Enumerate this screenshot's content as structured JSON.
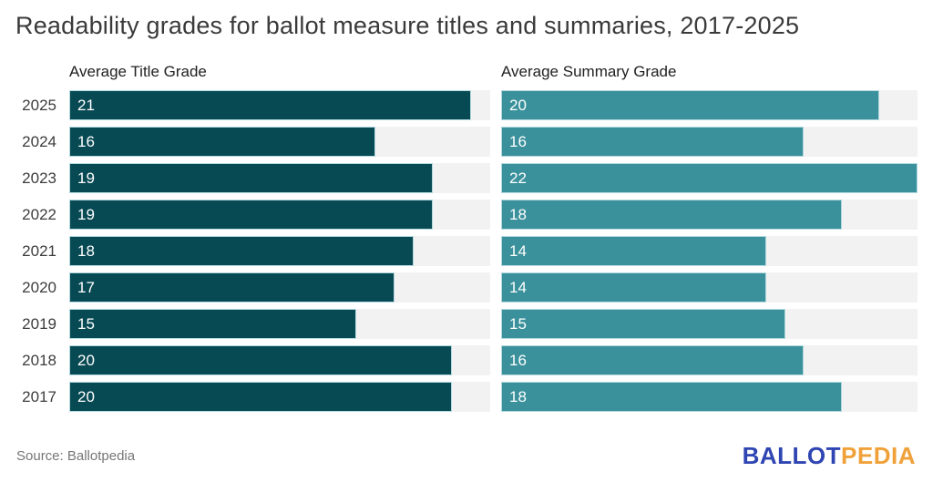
{
  "title": "Readability grades for ballot measure titles and summaries, 2017-2025",
  "columns": {
    "left": "Average Title Grade",
    "right": "Average Summary Grade"
  },
  "source": "Source: Ballotpedia",
  "logo": {
    "ballot": "BALLOT",
    "pedia": "PEDIA"
  },
  "colors": {
    "title_bar": "#084a54",
    "summary_bar": "#3a919b",
    "track": "#f2f2f2",
    "bar_border": "#b3d9df",
    "logo_blue": "#2f46b2",
    "logo_orange": "#f0a13a"
  },
  "chart_data": {
    "type": "bar",
    "orientation": "horizontal",
    "title": "Readability grades for ballot measure titles and summaries, 2017-2025",
    "categories": [
      "2025",
      "2024",
      "2023",
      "2022",
      "2021",
      "2020",
      "2019",
      "2018",
      "2017"
    ],
    "series": [
      {
        "name": "Average Title Grade",
        "values": [
          21,
          16,
          19,
          19,
          18,
          17,
          15,
          20,
          20
        ]
      },
      {
        "name": "Average Summary Grade",
        "values": [
          20,
          16,
          22,
          18,
          14,
          14,
          15,
          16,
          18
        ]
      }
    ],
    "xlim": [
      0,
      22
    ],
    "value_labels": "inside-left",
    "grid": false,
    "legend": "column-headers-above-each-panel",
    "source_note": "Source: Ballotpedia"
  }
}
